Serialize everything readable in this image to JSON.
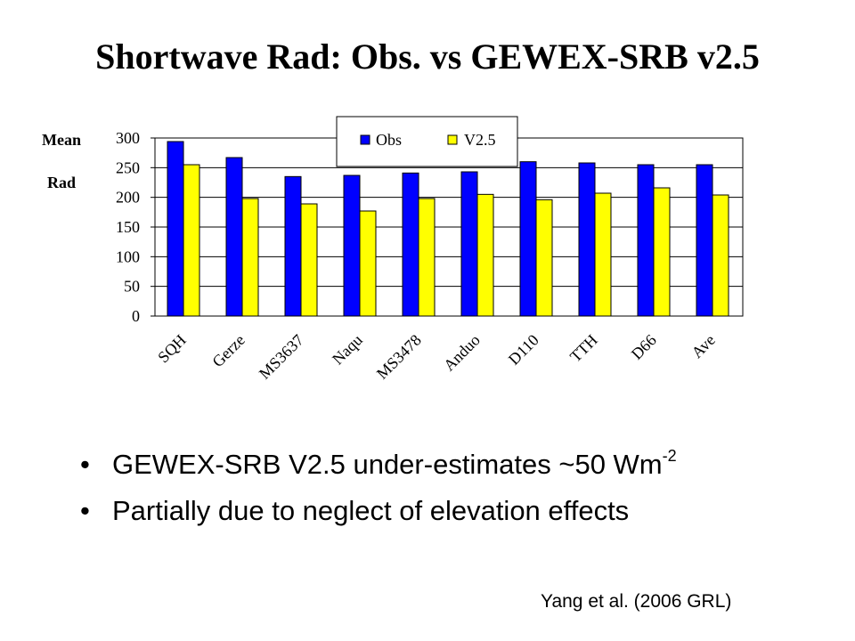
{
  "slide": {
    "title": "Shortwave Rad: Obs. vs GEWEX-SRB v2.5",
    "y_label_line1": "Mean",
    "y_label_line2": "Rad",
    "bullets": [
      {
        "text": "GEWEX-SRB V2.5 under-estimates ~50 Wm",
        "sup": "-2"
      },
      {
        "text": "Partially due to neglect of elevation effects",
        "sup": ""
      }
    ],
    "bullet_symbol": "•",
    "citation": "Yang et al. (2006 GRL)"
  },
  "chart_data": {
    "type": "bar",
    "categories": [
      "SQH",
      "Gerze",
      "MS3637",
      "Naqu",
      "MS3478",
      "Anduo",
      "D110",
      "TTH",
      "D66",
      "Ave"
    ],
    "series": [
      {
        "name": "Obs",
        "color": "#0000ff",
        "values": [
          294,
          267,
          235,
          237,
          241,
          243,
          260,
          258,
          255,
          255
        ]
      },
      {
        "name": "V2.5",
        "color": "#ffff00",
        "values": [
          255,
          198,
          189,
          177,
          198,
          205,
          196,
          207,
          216,
          204
        ]
      }
    ],
    "y_ticks": [
      0,
      50,
      100,
      150,
      200,
      250,
      300
    ],
    "ylim": [
      0,
      300
    ],
    "grid": true,
    "legend_position": "top-right"
  }
}
